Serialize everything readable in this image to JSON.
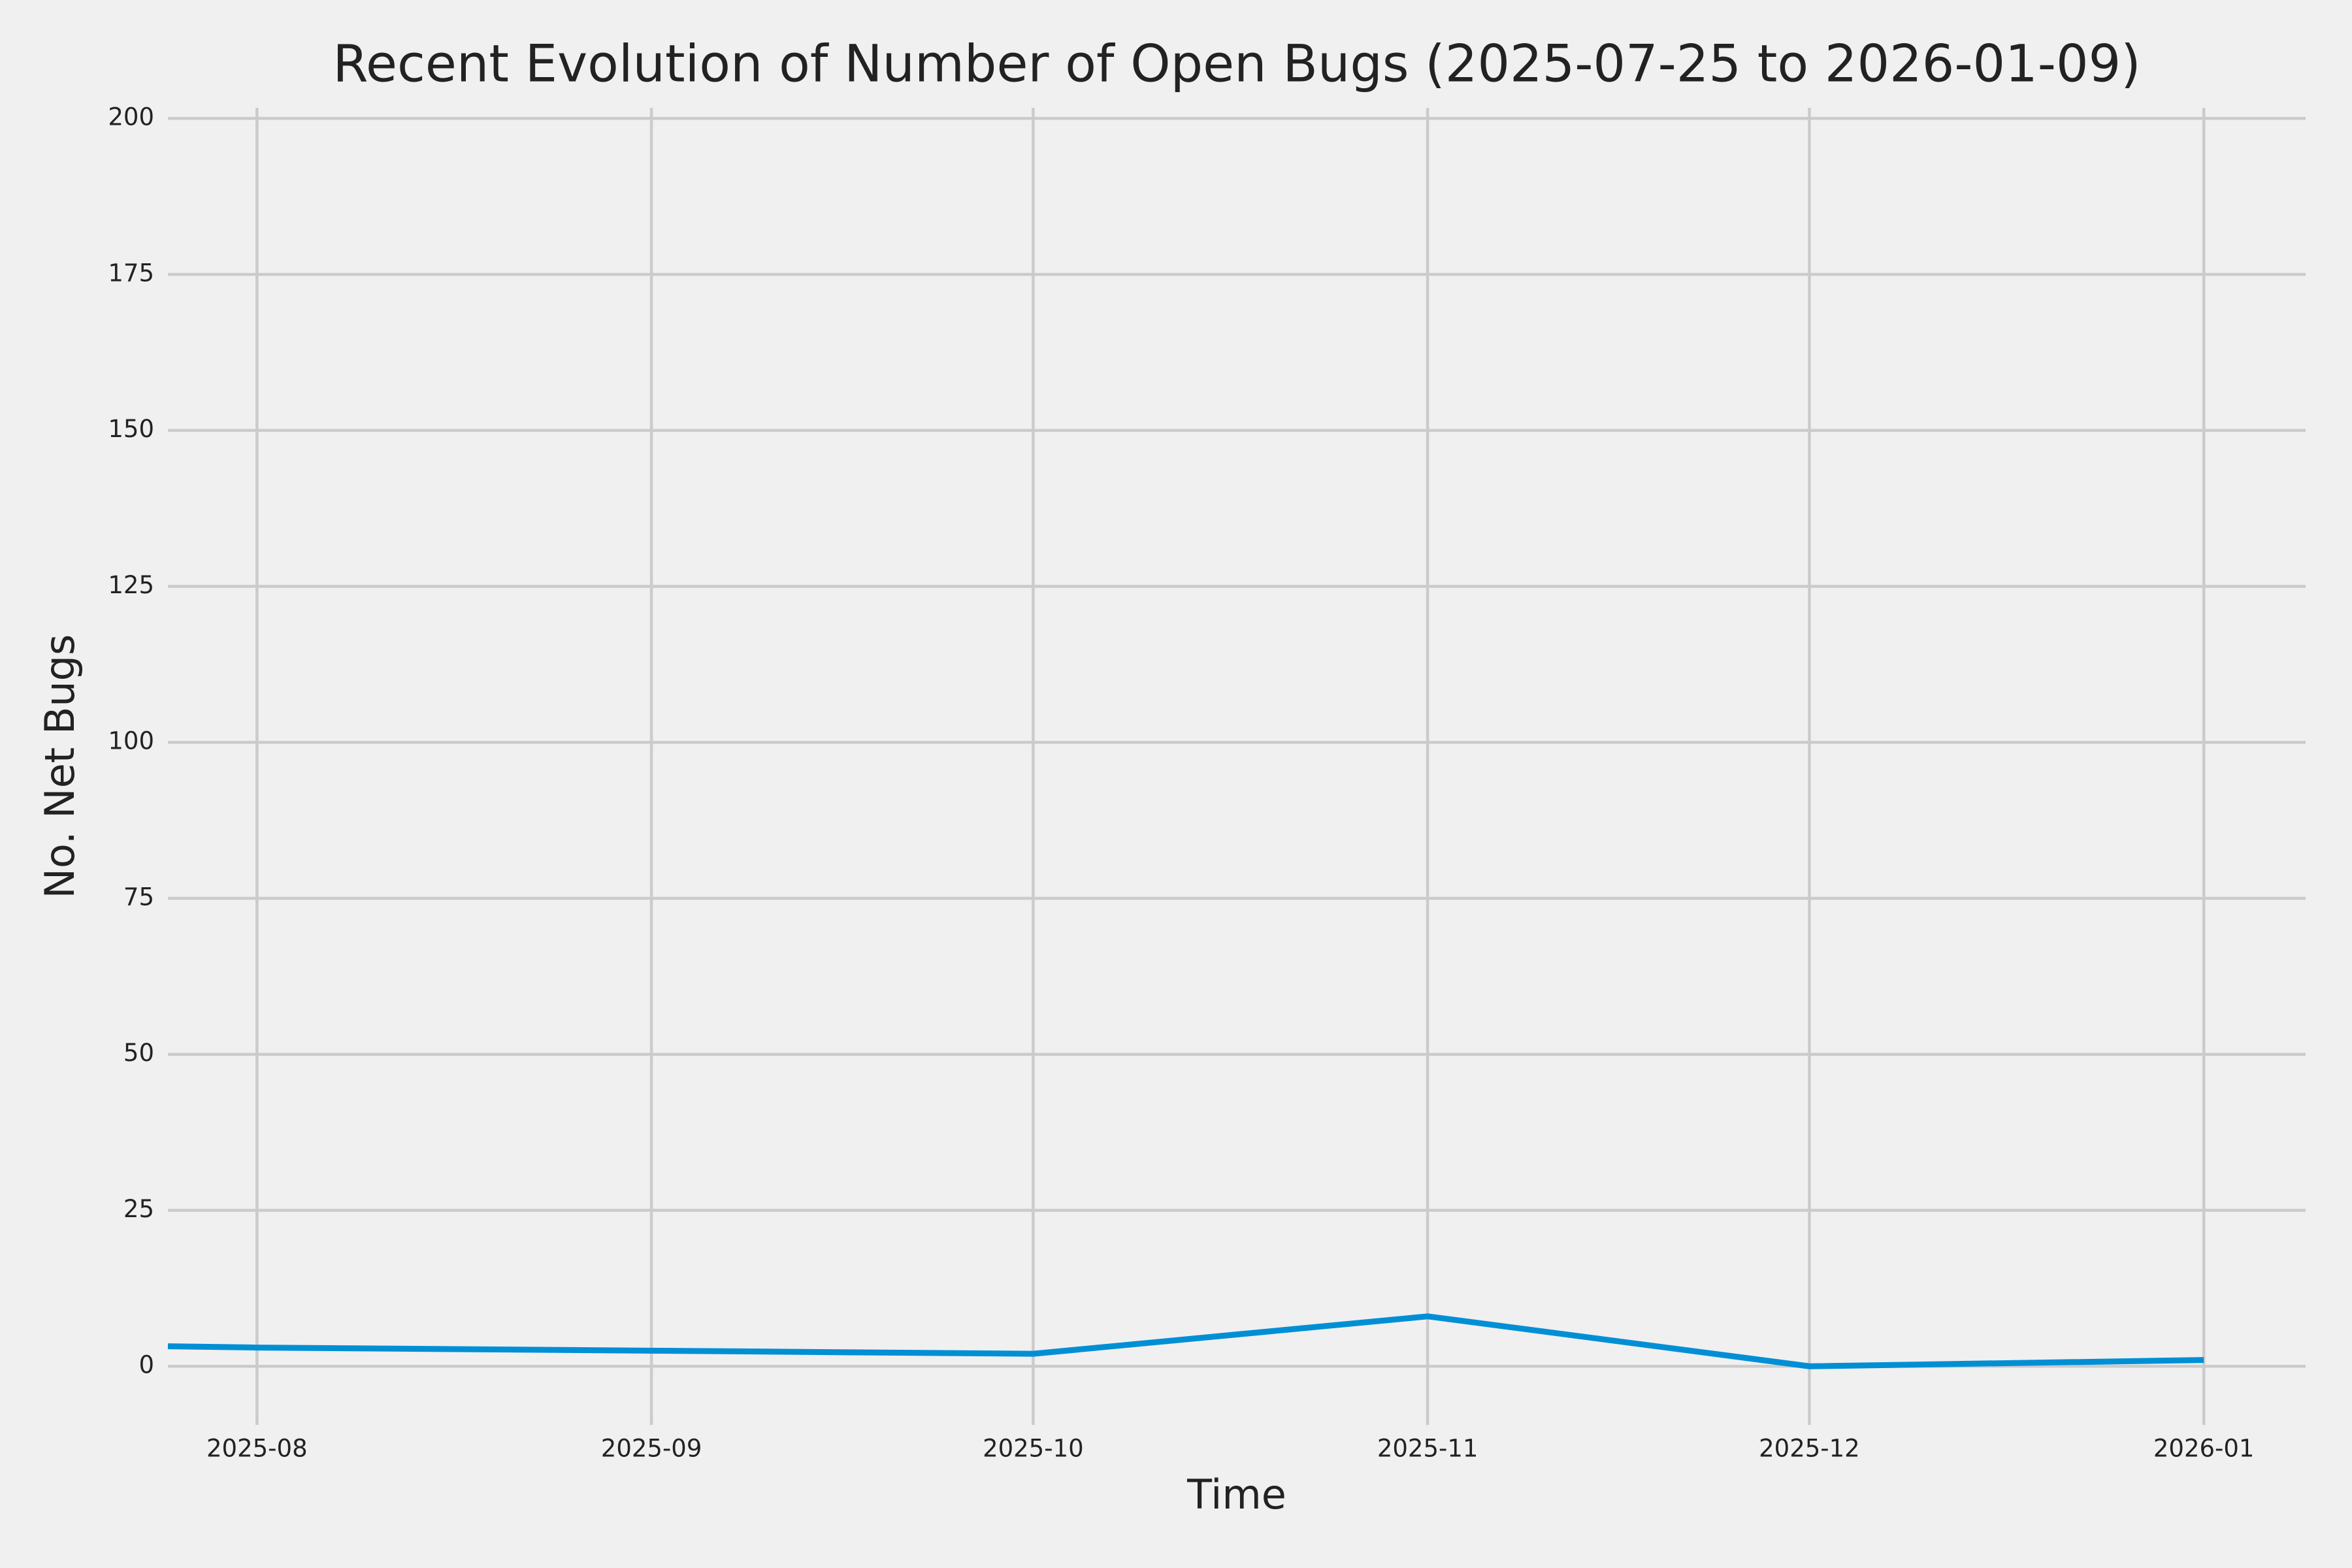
{
  "chart_data": {
    "type": "line",
    "title": "Recent Evolution of Number of Open Bugs (2025-07-25 to 2026-01-09)",
    "x_label": "Time",
    "y_label": "No. Net Bugs",
    "x": [
      "2025-07-25",
      "2025-08",
      "2025-09",
      "2025-10",
      "2025-11",
      "2025-12",
      "2026-01"
    ],
    "series": [
      {
        "color": "#008fd5",
        "values": [
          3.2,
          3,
          2.5,
          2,
          8,
          0,
          1
        ]
      }
    ],
    "xlim": [
      "2025-07-25",
      "2026-01-09"
    ],
    "xticks": [
      "2025-08",
      "2025-09",
      "2025-10",
      "2025-11",
      "2025-12",
      "2026-01"
    ],
    "ylim": [
      -9.4,
      201.7
    ],
    "yticks": [
      0,
      25,
      50,
      75,
      100,
      125,
      150,
      175,
      200
    ],
    "grid": true
  }
}
